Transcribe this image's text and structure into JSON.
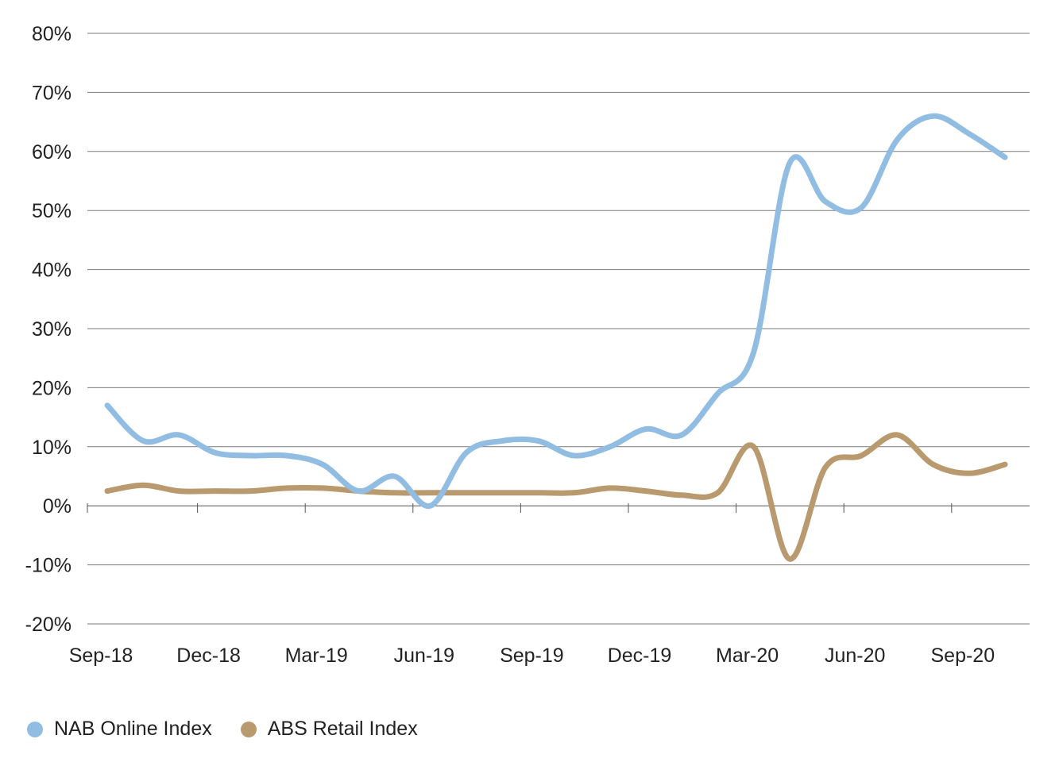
{
  "chart_data": {
    "type": "line",
    "title": "",
    "xlabel": "",
    "ylabel": "",
    "ylim": [
      -20,
      80
    ],
    "y_ticks": [
      80,
      70,
      60,
      50,
      40,
      30,
      20,
      10,
      0,
      -10,
      -20
    ],
    "y_tick_labels": [
      "80%",
      "70%",
      "60%",
      "50%",
      "40%",
      "30%",
      "20%",
      "10%",
      "0%",
      "-10%",
      "-20%"
    ],
    "x_tick_labels": [
      "Sep-18",
      "Dec-18",
      "Mar-19",
      "Jun-19",
      "Sep-19",
      "Dec-19",
      "Mar-20",
      "Jun-20",
      "Sep-20"
    ],
    "x": [
      "Sep-18",
      "Oct-18",
      "Nov-18",
      "Dec-18",
      "Jan-19",
      "Feb-19",
      "Mar-19",
      "Apr-19",
      "May-19",
      "Jun-19",
      "Jul-19",
      "Aug-19",
      "Sep-19",
      "Oct-19",
      "Nov-19",
      "Dec-19",
      "Jan-20",
      "Feb-20",
      "Mar-20",
      "Apr-20",
      "May-20",
      "Jun-20",
      "Jul-20",
      "Aug-20",
      "Sep-20",
      "Oct-20"
    ],
    "grid": true,
    "legend_position": "bottom-left",
    "series": [
      {
        "name": "NAB Online Index",
        "color": "#92bde3",
        "values": [
          17,
          11,
          12,
          9,
          8.5,
          8.5,
          7,
          2.5,
          5,
          0,
          9,
          11,
          11,
          8.5,
          10,
          13,
          12,
          19,
          26,
          58,
          51.5,
          50.5,
          62,
          66,
          63,
          59
        ]
      },
      {
        "name": "ABS Retail Index",
        "color": "#b99a6e",
        "values": [
          2.5,
          3.5,
          2.5,
          2.5,
          2.5,
          3,
          3,
          2.5,
          2.2,
          2.2,
          2.2,
          2.2,
          2.2,
          2.2,
          3,
          2.5,
          1.8,
          2.2,
          10,
          -9,
          6.5,
          8.5,
          12,
          7,
          5.5,
          7
        ]
      }
    ]
  }
}
